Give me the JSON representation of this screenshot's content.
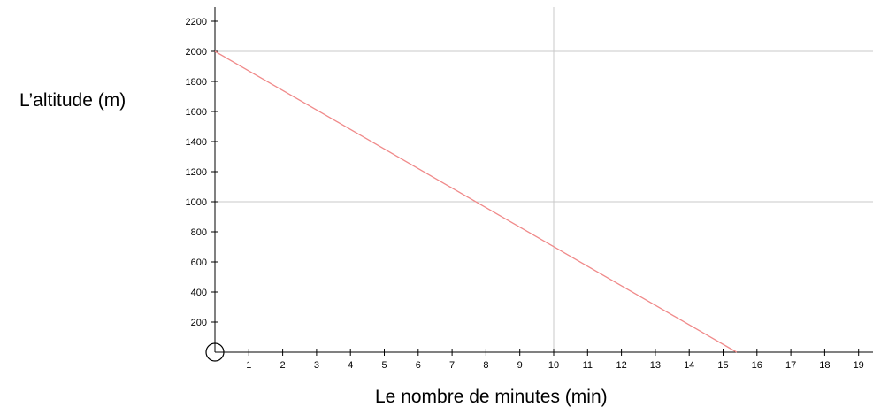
{
  "chart_data": {
    "type": "line",
    "xlabel": "Le nombre de minutes (min)",
    "ylabel": "L’altitude (m)",
    "xlim": [
      0,
      19
    ],
    "ylim": [
      0,
      2200
    ],
    "x_ticks": [
      1,
      2,
      3,
      4,
      5,
      6,
      7,
      8,
      9,
      10,
      11,
      12,
      13,
      14,
      15,
      16,
      17,
      18,
      19
    ],
    "y_ticks": [
      200,
      400,
      600,
      800,
      1000,
      1200,
      1400,
      1600,
      1800,
      2000,
      2200
    ],
    "grid": {
      "x": [
        10
      ],
      "y": [
        1000,
        2000
      ]
    },
    "series": [
      {
        "x": [
          0,
          15.4
        ],
        "y": [
          2000,
          0
        ],
        "color": "#f08a8a"
      }
    ],
    "colors": {
      "axis": "#000000",
      "grid": "#c8c8c8",
      "line": "#f08a8a"
    }
  }
}
